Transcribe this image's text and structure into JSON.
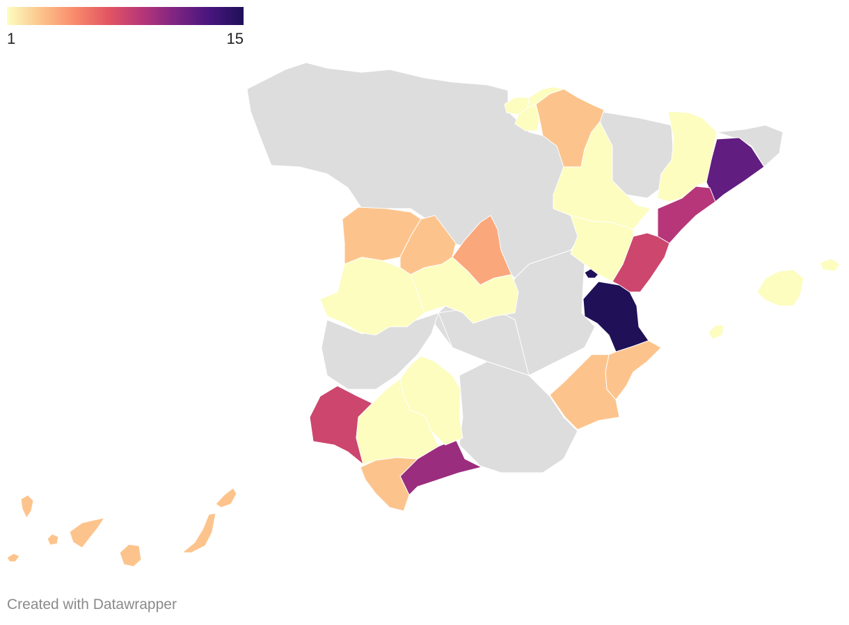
{
  "legend": {
    "min_label": "1",
    "max_label": "15",
    "min": 1,
    "max": 15,
    "gradient": [
      "#fcfdbf",
      "#fcc48c",
      "#f98a6b",
      "#e25563",
      "#b63679",
      "#7d2482",
      "#47157d",
      "#1f1057"
    ]
  },
  "credit": "Created with Datawrapper",
  "no_data_color": "#dddddd",
  "provinces": [
    {
      "name": "Valencia",
      "value": 15
    },
    {
      "name": "Barcelona",
      "value": 12
    },
    {
      "name": "Málaga",
      "value": 10
    },
    {
      "name": "Tarragona",
      "value": 9
    },
    {
      "name": "Castellón",
      "value": 8
    },
    {
      "name": "Huelva",
      "value": 8
    },
    {
      "name": "Madrid",
      "value": 4
    },
    {
      "name": "Zamora",
      "value": 3
    },
    {
      "name": "Valladolid",
      "value": 3
    },
    {
      "name": "Alicante",
      "value": 3
    },
    {
      "name": "Murcia",
      "value": 3
    },
    {
      "name": "Cádiz",
      "value": 3
    },
    {
      "name": "Navarra",
      "value": 3
    },
    {
      "name": "Las Palmas",
      "value": 3
    },
    {
      "name": "Santa Cruz de Tenerife",
      "value": 3
    },
    {
      "name": "Cáceres",
      "value": 1
    },
    {
      "name": "Toledo",
      "value": 1
    },
    {
      "name": "Córdoba",
      "value": 1
    },
    {
      "name": "Sevilla",
      "value": 1
    },
    {
      "name": "Zaragoza",
      "value": 1
    },
    {
      "name": "Teruel",
      "value": 1
    },
    {
      "name": "Lleida",
      "value": 1
    },
    {
      "name": "Islas Baleares",
      "value": 1
    },
    {
      "name": "Gipuzkoa",
      "value": 1
    },
    {
      "name": "Bizkaia",
      "value": 1
    },
    {
      "name": "Álava",
      "value": 1
    }
  ]
}
